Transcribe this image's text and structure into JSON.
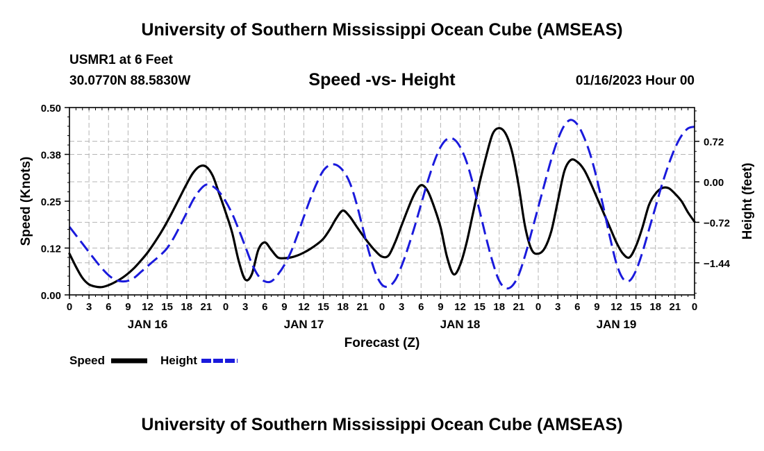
{
  "header": {
    "title": "University of Southern Mississippi Ocean Cube (AMSEAS)",
    "station": "USMR1 at 6 Feet",
    "coords": "30.0770N  88.5830W",
    "subtitle": "Speed -vs- Height",
    "date": "01/16/2023 Hour 00"
  },
  "footer": {
    "title": "University of Southern Mississippi Ocean Cube (AMSEAS)"
  },
  "colors": {
    "speed": "#000000",
    "height": "#1a1adc",
    "grid": "#b4b4b4"
  },
  "chart_data": {
    "type": "line",
    "title": "Speed -vs- Height",
    "xlabel": "Forecast (Z)",
    "ylabel": "Speed (Knots)",
    "y2label": "Height (feet)",
    "x_range": [
      0,
      96
    ],
    "x_tick_step": 3,
    "x_tick_labels": [
      "0",
      "3",
      "6",
      "9",
      "12",
      "15",
      "18",
      "21",
      "0",
      "3",
      "6",
      "9",
      "12",
      "15",
      "18",
      "21",
      "0",
      "3",
      "6",
      "9",
      "12",
      "15",
      "18",
      "21",
      "0",
      "3",
      "6",
      "9",
      "12",
      "15",
      "18",
      "21",
      "0"
    ],
    "day_labels": [
      {
        "label": "JAN 16",
        "x": 12
      },
      {
        "label": "JAN 17",
        "x": 36
      },
      {
        "label": "JAN 18",
        "x": 60
      },
      {
        "label": "JAN 19",
        "x": 84
      }
    ],
    "ylim": [
      0,
      0.5
    ],
    "y_ticks": [
      0,
      0.125,
      0.25,
      0.375,
      0.5
    ],
    "y_tick_labels": [
      "0.00",
      "0.12",
      "0.25",
      "0.38",
      "0.50"
    ],
    "y2lim": [
      -2.01,
      1.32
    ],
    "y2_ticks": [
      -1.44,
      -0.72,
      0,
      0.72
    ],
    "y2_tick_labels": [
      "−1.44",
      "−0.72",
      "0.00",
      "0.72"
    ],
    "series": [
      {
        "name": "Speed",
        "axis": "left",
        "x": [
          0,
          1,
          2,
          3,
          4,
          5,
          6,
          7,
          8,
          9,
          10,
          11,
          12,
          13,
          14,
          15,
          16,
          17,
          18,
          19,
          20,
          21,
          22,
          23,
          24,
          25,
          26,
          27,
          28,
          29,
          30,
          31,
          32,
          33,
          34,
          35,
          36,
          37,
          38,
          39,
          40,
          41,
          42,
          43,
          44,
          45,
          46,
          47,
          48,
          49,
          50,
          51,
          52,
          53,
          54,
          55,
          56,
          57,
          58,
          59,
          60,
          61,
          62,
          63,
          64,
          65,
          66,
          67,
          68,
          69,
          70,
          71,
          72,
          73,
          74,
          75,
          76,
          77,
          78,
          79,
          80,
          81,
          82,
          83,
          84,
          85,
          86,
          87,
          88,
          89,
          90,
          91,
          92,
          93,
          94,
          95,
          96
        ],
        "values": [
          0.11,
          0.075,
          0.045,
          0.028,
          0.022,
          0.021,
          0.026,
          0.034,
          0.044,
          0.057,
          0.073,
          0.092,
          0.113,
          0.138,
          0.165,
          0.195,
          0.228,
          0.262,
          0.296,
          0.326,
          0.343,
          0.342,
          0.318,
          0.27,
          0.22,
          0.165,
          0.09,
          0.041,
          0.055,
          0.12,
          0.14,
          0.12,
          0.1,
          0.098,
          0.1,
          0.105,
          0.113,
          0.123,
          0.135,
          0.15,
          0.175,
          0.205,
          0.225,
          0.21,
          0.185,
          0.16,
          0.137,
          0.117,
          0.102,
          0.105,
          0.14,
          0.185,
          0.23,
          0.27,
          0.293,
          0.278,
          0.235,
          0.18,
          0.1,
          0.055,
          0.08,
          0.14,
          0.22,
          0.3,
          0.37,
          0.43,
          0.445,
          0.43,
          0.38,
          0.29,
          0.18,
          0.12,
          0.11,
          0.125,
          0.17,
          0.25,
          0.33,
          0.36,
          0.355,
          0.335,
          0.3,
          0.26,
          0.22,
          0.18,
          0.14,
          0.11,
          0.1,
          0.13,
          0.18,
          0.24,
          0.27,
          0.285,
          0.285,
          0.27,
          0.25,
          0.22,
          0.195
        ]
      },
      {
        "name": "Height",
        "axis": "right",
        "x": [
          0,
          1,
          2,
          3,
          4,
          5,
          6,
          7,
          8,
          9,
          10,
          11,
          12,
          13,
          14,
          15,
          16,
          17,
          18,
          19,
          20,
          21,
          22,
          23,
          24,
          25,
          26,
          27,
          28,
          29,
          30,
          31,
          32,
          33,
          34,
          35,
          36,
          37,
          38,
          39,
          40,
          41,
          42,
          43,
          44,
          45,
          46,
          47,
          48,
          49,
          50,
          51,
          52,
          53,
          54,
          55,
          56,
          57,
          58,
          59,
          60,
          61,
          62,
          63,
          64,
          65,
          66,
          67,
          68,
          69,
          70,
          71,
          72,
          73,
          74,
          75,
          76,
          77,
          78,
          79,
          80,
          81,
          82,
          83,
          84,
          85,
          86,
          87,
          88,
          89,
          90,
          91,
          92,
          93,
          94,
          95,
          96
        ],
        "values": [
          -0.8,
          -0.95,
          -1.1,
          -1.25,
          -1.4,
          -1.54,
          -1.66,
          -1.74,
          -1.77,
          -1.76,
          -1.7,
          -1.6,
          -1.5,
          -1.4,
          -1.3,
          -1.18,
          -1.0,
          -0.78,
          -0.55,
          -0.32,
          -0.15,
          -0.05,
          -0.08,
          -0.18,
          -0.35,
          -0.57,
          -0.85,
          -1.15,
          -1.45,
          -1.67,
          -1.77,
          -1.77,
          -1.65,
          -1.48,
          -1.25,
          -0.95,
          -0.62,
          -0.3,
          -0.02,
          0.2,
          0.3,
          0.3,
          0.2,
          0.0,
          -0.35,
          -0.8,
          -1.25,
          -1.62,
          -1.83,
          -1.86,
          -1.75,
          -1.5,
          -1.17,
          -0.8,
          -0.4,
          0.0,
          0.35,
          0.62,
          0.76,
          0.76,
          0.62,
          0.35,
          -0.05,
          -0.52,
          -1.0,
          -1.43,
          -1.76,
          -1.89,
          -1.85,
          -1.65,
          -1.3,
          -0.88,
          -0.45,
          -0.02,
          0.4,
          0.75,
          1.0,
          1.1,
          1.02,
          0.8,
          0.48,
          0.05,
          -0.45,
          -0.98,
          -1.45,
          -1.72,
          -1.76,
          -1.58,
          -1.25,
          -0.85,
          -0.45,
          -0.05,
          0.3,
          0.6,
          0.82,
          0.95,
          0.98
        ]
      }
    ],
    "legend": [
      {
        "label": "Speed",
        "series": "Speed"
      },
      {
        "label": "Height",
        "series": "Height"
      }
    ],
    "legend_position": "bottom-left",
    "grid": true
  }
}
